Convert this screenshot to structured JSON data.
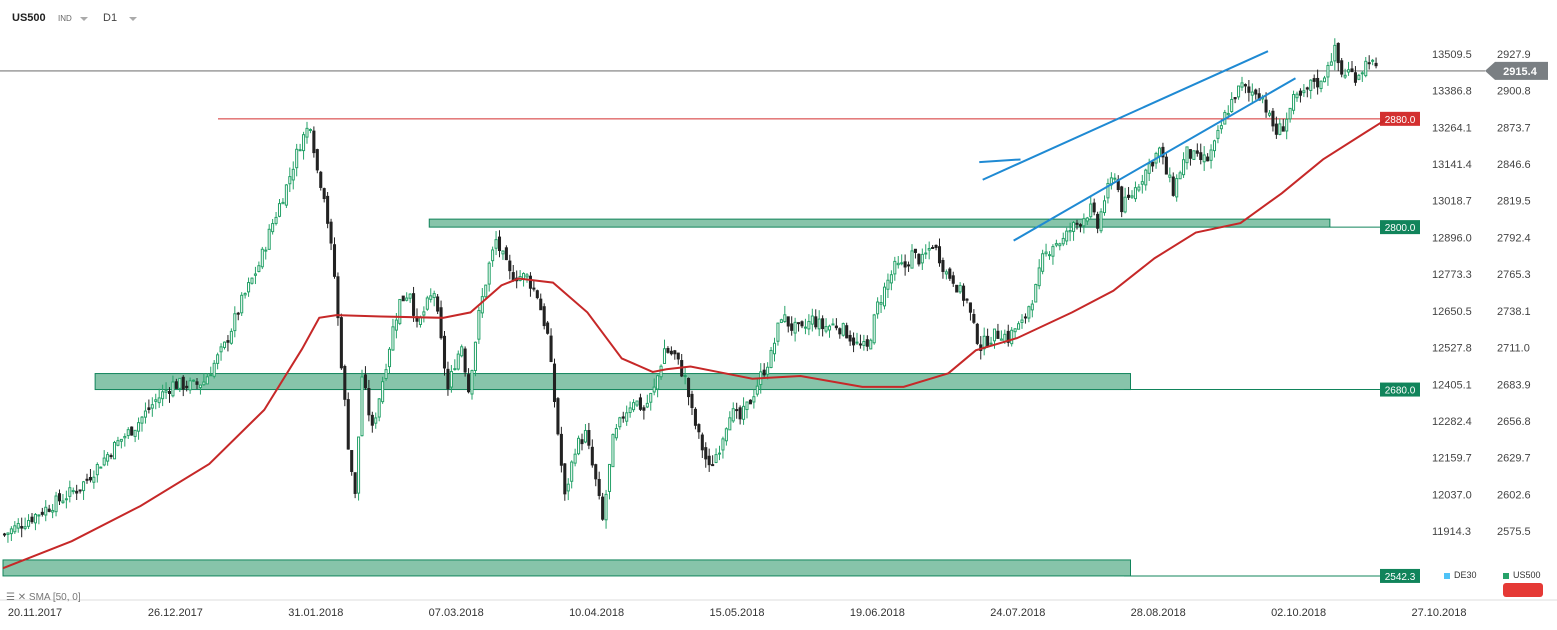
{
  "header": {
    "symbol": "US500",
    "type": "IND",
    "timeframe": "D1"
  },
  "indicator": {
    "label": "SMA",
    "params": "[50, 0]"
  },
  "legend": [
    {
      "name": "DE30",
      "color": "#4fc3f7"
    },
    {
      "name": "US500",
      "color": "#26a269"
    }
  ],
  "colors": {
    "up": "#26a269",
    "down": "#222222",
    "sma": "#c62828",
    "zone": "#5fb08e",
    "channel": "#1f8ad3",
    "price_line": "#555555",
    "level_box": "#11845b",
    "resistance": "#d32f2f"
  },
  "chart_data": {
    "type": "candlestick",
    "symbol": "US500",
    "timeframe": "D1",
    "x_labels": [
      "20.11.2017",
      "26.12.2017",
      "31.01.2018",
      "07.03.2018",
      "10.04.2018",
      "15.05.2018",
      "19.06.2018",
      "24.07.2018",
      "28.08.2018",
      "02.10.2018",
      "27.10.2018"
    ],
    "y_ticks_right": [
      2927.9,
      2900.8,
      2873.7,
      2846.6,
      2819.5,
      2792.4,
      2765.3,
      2738.1,
      2711.0,
      2683.9,
      2656.8,
      2629.7,
      2602.6,
      2575.5
    ],
    "y_ticks_secondary": [
      13509.5,
      13386.8,
      13264.1,
      13141.4,
      13018.7,
      12896.0,
      12773.3,
      12650.5,
      12527.8,
      12405.1,
      12282.4,
      12159.7,
      12037.0,
      11914.3
    ],
    "ylim": [
      2542.3,
      2935
    ],
    "current_price": 2915.4,
    "levels": [
      {
        "value": 2880.0,
        "label": "2880.0",
        "kind": "resistance"
      },
      {
        "value": 2800.0,
        "label": "2800.0",
        "kind": "zone"
      },
      {
        "value": 2680.0,
        "label": "2680.0",
        "kind": "zone"
      },
      {
        "value": 2542.3,
        "label": "2542.3",
        "kind": "zone"
      }
    ],
    "sma_period": 50,
    "sma_shift": 0,
    "close_path": [
      [
        0,
        2573
      ],
      [
        12,
        2592
      ],
      [
        22,
        2608
      ],
      [
        33,
        2641
      ],
      [
        38,
        2653
      ],
      [
        44,
        2672
      ],
      [
        49,
        2684
      ],
      [
        55,
        2683
      ],
      [
        58,
        2686
      ],
      [
        64,
        2712
      ],
      [
        69,
        2745
      ],
      [
        74,
        2772
      ],
      [
        78,
        2803
      ],
      [
        82,
        2830
      ],
      [
        86,
        2862
      ],
      [
        89,
        2877
      ],
      [
        91,
        2842
      ],
      [
        93,
        2825
      ],
      [
        96,
        2764
      ],
      [
        98,
        2700
      ],
      [
        100,
        2640
      ],
      [
        102,
        2601
      ],
      [
        104,
        2690
      ],
      [
        107,
        2650
      ],
      [
        110,
        2687
      ],
      [
        113,
        2725
      ],
      [
        115,
        2745
      ],
      [
        118,
        2753
      ],
      [
        120,
        2726
      ],
      [
        123,
        2743
      ],
      [
        125,
        2752
      ],
      [
        127,
        2715
      ],
      [
        129,
        2680
      ],
      [
        131,
        2700
      ],
      [
        133,
        2713
      ],
      [
        135,
        2680
      ],
      [
        138,
        2735
      ],
      [
        141,
        2772
      ],
      [
        143,
        2790
      ],
      [
        147,
        2765
      ],
      [
        152,
        2763
      ],
      [
        155,
        2750
      ],
      [
        158,
        2720
      ],
      [
        161,
        2648
      ],
      [
        163,
        2600
      ],
      [
        166,
        2637
      ],
      [
        169,
        2647
      ],
      [
        172,
        2612
      ],
      [
        174,
        2583
      ],
      [
        177,
        2642
      ],
      [
        180,
        2661
      ],
      [
        183,
        2673
      ],
      [
        186,
        2665
      ],
      [
        189,
        2680
      ],
      [
        192,
        2710
      ],
      [
        195,
        2705
      ],
      [
        198,
        2688
      ],
      [
        200,
        2663
      ],
      [
        202,
        2645
      ],
      [
        205,
        2621
      ],
      [
        208,
        2638
      ],
      [
        211,
        2664
      ],
      [
        214,
        2658
      ],
      [
        217,
        2672
      ],
      [
        220,
        2690
      ],
      [
        223,
        2705
      ],
      [
        226,
        2735
      ],
      [
        229,
        2726
      ],
      [
        232,
        2723
      ],
      [
        235,
        2732
      ],
      [
        238,
        2726
      ],
      [
        242,
        2728
      ],
      [
        245,
        2722
      ],
      [
        248,
        2713
      ],
      [
        251,
        2710
      ],
      [
        254,
        2742
      ],
      [
        257,
        2760
      ],
      [
        259,
        2770
      ],
      [
        262,
        2771
      ],
      [
        264,
        2780
      ],
      [
        267,
        2775
      ],
      [
        270,
        2788
      ],
      [
        272,
        2778
      ],
      [
        274,
        2766
      ],
      [
        276,
        2762
      ],
      [
        278,
        2752
      ],
      [
        280,
        2745
      ],
      [
        282,
        2725
      ],
      [
        284,
        2712
      ],
      [
        286,
        2717
      ],
      [
        288,
        2720
      ],
      [
        290,
        2722
      ],
      [
        292,
        2718
      ],
      [
        294,
        2725
      ],
      [
        296,
        2728
      ],
      [
        298,
        2742
      ],
      [
        300,
        2754
      ],
      [
        302,
        2776
      ],
      [
        305,
        2788
      ],
      [
        308,
        2790
      ],
      [
        310,
        2798
      ],
      [
        313,
        2805
      ],
      [
        316,
        2813
      ],
      [
        318,
        2800
      ],
      [
        320,
        2821
      ],
      [
        323,
        2840
      ],
      [
        325,
        2815
      ],
      [
        327,
        2820
      ],
      [
        330,
        2833
      ],
      [
        333,
        2846
      ],
      [
        336,
        2857
      ],
      [
        338,
        2840
      ],
      [
        340,
        2827
      ],
      [
        342,
        2842
      ],
      [
        344,
        2855
      ],
      [
        347,
        2850
      ],
      [
        350,
        2850
      ],
      [
        352,
        2860
      ],
      [
        355,
        2882
      ],
      [
        358,
        2898
      ],
      [
        360,
        2904
      ],
      [
        362,
        2899
      ],
      [
        364,
        2901
      ],
      [
        366,
        2896
      ],
      [
        368,
        2880
      ],
      [
        370,
        2870
      ],
      [
        372,
        2875
      ],
      [
        375,
        2893
      ],
      [
        378,
        2897
      ],
      [
        381,
        2909
      ],
      [
        383,
        2905
      ],
      [
        385,
        2922
      ],
      [
        387,
        2930
      ],
      [
        389,
        2913
      ],
      [
        391,
        2915
      ],
      [
        393,
        2912
      ],
      [
        395,
        2917
      ],
      [
        397,
        2925
      ],
      [
        399,
        2915
      ]
    ],
    "sma_path": [
      [
        0,
        2548
      ],
      [
        20,
        2568
      ],
      [
        40,
        2594
      ],
      [
        60,
        2625
      ],
      [
        76,
        2665
      ],
      [
        87,
        2710
      ],
      [
        92,
        2733
      ],
      [
        97,
        2735
      ],
      [
        110,
        2734
      ],
      [
        128,
        2733
      ],
      [
        136,
        2737
      ],
      [
        145,
        2757
      ],
      [
        150,
        2762
      ],
      [
        160,
        2759
      ],
      [
        170,
        2737
      ],
      [
        180,
        2703
      ],
      [
        189,
        2693
      ],
      [
        193,
        2695
      ],
      [
        200,
        2697
      ],
      [
        208,
        2693
      ],
      [
        218,
        2688
      ],
      [
        232,
        2690
      ],
      [
        250,
        2682
      ],
      [
        262,
        2682
      ],
      [
        275,
        2692
      ],
      [
        283,
        2709
      ],
      [
        295,
        2718
      ],
      [
        311,
        2737
      ],
      [
        323,
        2753
      ],
      [
        335,
        2777
      ],
      [
        347,
        2796
      ],
      [
        360,
        2803
      ],
      [
        372,
        2825
      ],
      [
        384,
        2850
      ],
      [
        397,
        2871
      ],
      [
        402,
        2879
      ]
    ],
    "channel_upper": [
      [
        285,
        2835
      ],
      [
        368,
        2930
      ]
    ],
    "channel_lower": [
      [
        294,
        2790
      ],
      [
        376,
        2910
      ]
    ],
    "channel_start": [
      [
        284,
        2848
      ],
      [
        296,
        2850
      ]
    ],
    "annotations": [
      "2915.4"
    ]
  }
}
